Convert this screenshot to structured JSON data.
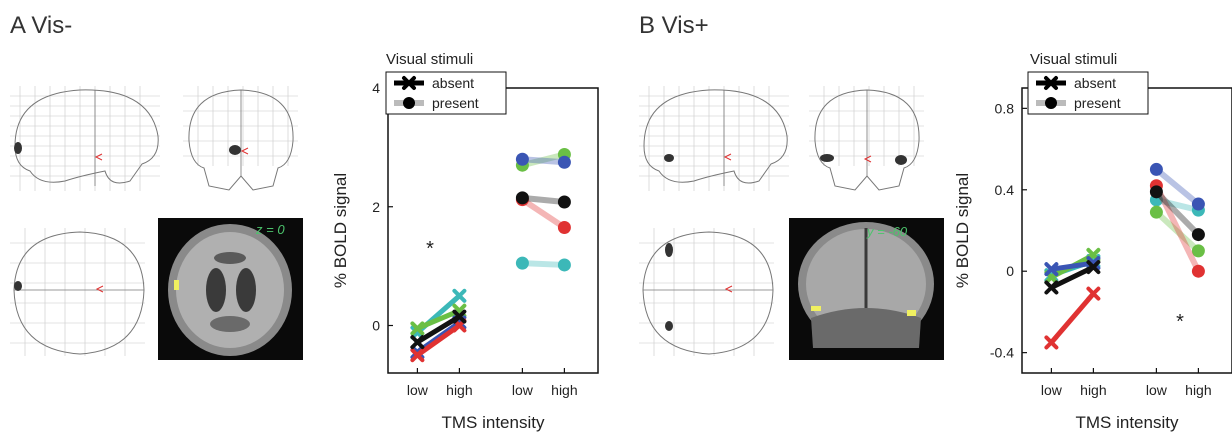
{
  "panels": [
    {
      "id": "A",
      "title": "A  Vis-",
      "slice_label": "z = 0"
    },
    {
      "id": "B",
      "title": "B Vis+",
      "slice_label": "y = -60"
    }
  ],
  "chart_data": [
    {
      "type": "line",
      "panel": "A",
      "legend_title": "Visual stimuli",
      "legend": [
        "absent",
        "present"
      ],
      "legend_placement": "top-left",
      "xlabel": "TMS intensity",
      "ylabel": "% BOLD signal",
      "ylim": [
        -0.8,
        4
      ],
      "yticks": [
        0,
        2,
        4
      ],
      "group_labels": [
        [
          "low",
          "high"
        ],
        [
          "low",
          "high"
        ]
      ],
      "series": [
        {
          "color": "#3cb8b8",
          "absent": [
            -0.12,
            0.5
          ],
          "present": [
            1.05,
            1.02
          ]
        },
        {
          "color": "#6abf45",
          "absent": [
            -0.05,
            0.25
          ],
          "present": [
            2.7,
            2.88
          ]
        },
        {
          "color": "#3a55b4",
          "absent": [
            -0.45,
            0.05
          ],
          "present": [
            2.8,
            2.75
          ]
        },
        {
          "color": "#e03232",
          "absent": [
            -0.5,
            0.0
          ],
          "present": [
            2.12,
            1.65
          ]
        },
        {
          "color": "#111111",
          "absent": [
            -0.28,
            0.15
          ],
          "present": [
            2.15,
            2.08
          ]
        }
      ],
      "annotations": [
        {
          "text": "*",
          "group": "absent"
        }
      ]
    },
    {
      "type": "line",
      "panel": "B",
      "legend_title": "Visual stimuli",
      "legend": [
        "absent",
        "present"
      ],
      "legend_placement": "top-left",
      "xlabel": "TMS intensity",
      "ylabel": "% BOLD signal",
      "ylim": [
        -0.5,
        0.9
      ],
      "yticks": [
        -0.4,
        0,
        0.4,
        0.8
      ],
      "group_labels": [
        [
          "low",
          "high"
        ],
        [
          "low",
          "high"
        ]
      ],
      "series": [
        {
          "color": "#3cb8b8",
          "absent": [
            -0.02,
            0.05
          ],
          "present": [
            0.35,
            0.3
          ]
        },
        {
          "color": "#6abf45",
          "absent": [
            -0.03,
            0.08
          ],
          "present": [
            0.29,
            0.1
          ]
        },
        {
          "color": "#3a55b4",
          "absent": [
            0.01,
            0.04
          ],
          "present": [
            0.5,
            0.33
          ]
        },
        {
          "color": "#e03232",
          "absent": [
            -0.35,
            -0.11
          ],
          "present": [
            0.42,
            0.0
          ]
        },
        {
          "color": "#111111",
          "absent": [
            -0.08,
            0.02
          ],
          "present": [
            0.39,
            0.18
          ]
        }
      ],
      "annotations": [
        {
          "text": "*",
          "group": "present"
        }
      ]
    }
  ]
}
